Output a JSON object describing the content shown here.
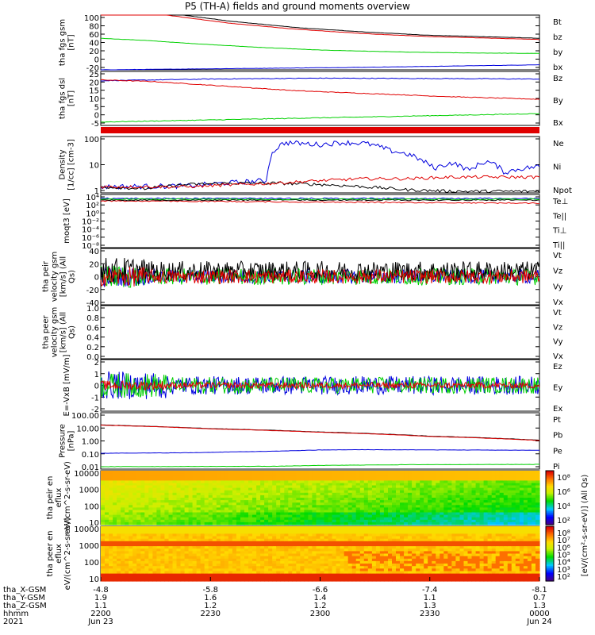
{
  "title": "P5 (TH-A) fields and ground moments overview",
  "colors": {
    "black": "#000000",
    "red": "#e00000",
    "green": "#00d000",
    "blue": "#0000dd"
  },
  "chart_data": [
    {
      "type": "line",
      "ylabel": "tha fgs gsm [nT]",
      "yticks": [
        "100",
        "80",
        "60",
        "40",
        "20",
        "0",
        "-20"
      ],
      "ylim": [
        -30,
        100
      ],
      "series": [
        {
          "name": "Bt",
          "color": "#000000",
          "x": [
            0,
            0.15,
            0.3,
            0.45,
            0.6,
            0.75,
            0.9,
            1
          ],
          "y": [
            140,
            105,
            85,
            70,
            60,
            52,
            48,
            45
          ]
        },
        {
          "name": "bz",
          "color": "#e00000",
          "x": [
            0,
            0.15,
            0.3,
            0.45,
            0.6,
            0.75,
            0.9,
            1
          ],
          "y": [
            130,
            100,
            80,
            66,
            56,
            49,
            45,
            42
          ]
        },
        {
          "name": "by",
          "color": "#00d000",
          "x": [
            0,
            0.1,
            0.2,
            0.35,
            0.5,
            0.7,
            0.85,
            1
          ],
          "y": [
            45,
            40,
            33,
            24,
            17,
            12,
            10,
            9
          ]
        },
        {
          "name": "bx",
          "color": "#0000dd",
          "x": [
            0,
            0.2,
            0.4,
            0.6,
            0.8,
            1
          ],
          "y": [
            -30,
            -28,
            -26,
            -24,
            -21,
            -18
          ]
        }
      ]
    },
    {
      "type": "line",
      "ylabel": "tha fgs dsl [nT]",
      "yticks": [
        "25",
        "20",
        "15",
        "10",
        "5",
        "0",
        "-5"
      ],
      "ylim": [
        -7,
        25
      ],
      "series": [
        {
          "name": "Bz",
          "color": "#0000dd",
          "x": [
            0,
            0.25,
            0.5,
            0.75,
            1
          ],
          "y": [
            19.5,
            20.5,
            21,
            20.8,
            20.5
          ]
        },
        {
          "name": "By",
          "color": "#e00000",
          "x": [
            0,
            0.12,
            0.3,
            0.45,
            0.6,
            0.8,
            1
          ],
          "y": [
            20,
            19,
            16,
            13.5,
            12,
            10,
            8.5
          ]
        },
        {
          "name": "Bx",
          "color": "#00d000",
          "x": [
            0,
            0.3,
            0.6,
            1
          ],
          "y": [
            -5,
            -3.5,
            -2,
            0
          ]
        }
      ]
    },
    {
      "type": "line",
      "ylabel": "Density [1/cc] [cm-3]",
      "yticks": [
        "100",
        "10",
        "1"
      ],
      "log": true,
      "series": [
        {
          "name": "Ne",
          "color": "#0000dd",
          "x": [
            0,
            0.2,
            0.38,
            0.42,
            0.5,
            0.55,
            0.6,
            0.66,
            0.7,
            0.73,
            0.76,
            0.8,
            0.84,
            0.88,
            0.92,
            0.96,
            1
          ],
          "y": [
            1,
            1.1,
            2,
            150,
            120,
            150,
            140,
            60,
            40,
            20,
            8,
            15,
            6,
            18,
            5,
            8,
            10
          ]
        },
        {
          "name": "Ni",
          "color": "#000000",
          "x": [
            0,
            0.1,
            0.2,
            0.3,
            0.4,
            0.5,
            0.6,
            0.7,
            0.8,
            1
          ],
          "y": [
            1,
            0.8,
            1.3,
            1.5,
            1.5,
            1.3,
            1,
            0.7,
            0.6,
            0.6
          ]
        },
        {
          "name": "Npot",
          "color": "#e00000",
          "x": [
            0,
            0.2,
            0.4,
            0.5,
            0.6,
            0.7,
            0.8,
            0.9,
            1
          ],
          "y": [
            1,
            1,
            1.5,
            2,
            2.5,
            2.5,
            3,
            3,
            3
          ]
        }
      ]
    },
    {
      "type": "line",
      "ylabel": "moqt3 [eV]",
      "yticks": [
        "10⁴",
        "10²",
        "10⁰",
        "10⁻²",
        "10⁻⁴",
        "10⁻⁶",
        "10⁻⁸"
      ],
      "series": [
        {
          "name": "Te⊥",
          "color": "#e00000"
        },
        {
          "name": "Te||",
          "color": "#000000"
        },
        {
          "name": "Ti⊥",
          "color": "#0000dd"
        },
        {
          "name": "Ti||",
          "color": "#00d000"
        }
      ]
    },
    {
      "type": "line",
      "ylabel": "tha peir velocity gsm [km/s] (All Qs)",
      "yticks": [
        "40",
        "20",
        "0",
        "-20",
        "-40"
      ],
      "ylim": [
        -40,
        40
      ],
      "series": [
        {
          "name": "Vt",
          "color": "#000000"
        },
        {
          "name": "Vz",
          "color": "#e00000"
        },
        {
          "name": "Vy",
          "color": "#00d000"
        },
        {
          "name": "Vx",
          "color": "#0000dd"
        }
      ]
    },
    {
      "type": "line",
      "ylabel": "tha peer velocity gsm [km/s] (All Qs)",
      "yticks": [
        "1.0",
        "0.8",
        "0.6",
        "0.4",
        "0.2",
        "0.0"
      ],
      "ylim": [
        0,
        1
      ],
      "series": [
        {
          "name": "Vt",
          "color": "#000000"
        },
        {
          "name": "Vz",
          "color": "#e00000"
        },
        {
          "name": "Vy",
          "color": "#00d000"
        },
        {
          "name": "Vx",
          "color": "#0000dd"
        }
      ]
    },
    {
      "type": "line",
      "ylabel": "E=-VxB [mV/m]",
      "yticks": [
        "2",
        "1",
        "0",
        "-1",
        "-2"
      ],
      "ylim": [
        -2.5,
        2.5
      ],
      "series": [
        {
          "name": "Ez",
          "color": "#e00000"
        },
        {
          "name": "Ey",
          "color": "#00d000"
        },
        {
          "name": "Ex",
          "color": "#0000dd"
        }
      ]
    },
    {
      "type": "line",
      "ylabel": "Pressure [nPa]",
      "yticks": [
        "100.00",
        "10.00",
        "1.00",
        "0.10",
        "0.01"
      ],
      "log": true,
      "series": [
        {
          "name": "Pt",
          "color": "#000000",
          "x": [
            0,
            0.25,
            0.5,
            0.75,
            1
          ],
          "y": [
            15,
            8,
            4.5,
            2.2,
            1.1
          ]
        },
        {
          "name": "Pb",
          "color": "#e00000",
          "x": [
            0,
            0.25,
            0.5,
            0.75,
            1
          ],
          "y": [
            14.5,
            7.7,
            4.3,
            2.1,
            1.05
          ]
        },
        {
          "name": "Pe",
          "color": "#00d000",
          "x": [
            0,
            0.4,
            0.5,
            0.7,
            1
          ],
          "y": [
            0.012,
            0.013,
            0.015,
            0.017,
            0.018
          ]
        },
        {
          "name": "Pi",
          "color": "#0000dd",
          "x": [
            0,
            0.2,
            0.4,
            0.5,
            0.6,
            0.8,
            1
          ],
          "y": [
            0.12,
            0.13,
            0.17,
            0.21,
            0.22,
            0.21,
            0.2
          ]
        }
      ]
    },
    {
      "type": "heatmap",
      "ylabel": "tha peir en eflux eV/(cm^2-s-sr-eV)",
      "yticks": [
        "10000",
        "1000",
        "100",
        "10"
      ],
      "colorbar_ticks": [
        "10⁸",
        "10⁶",
        "10⁴",
        "10²"
      ]
    },
    {
      "type": "heatmap",
      "ylabel": "tha peer en eflux eV/(cm^2-s-sr-eV)",
      "yticks": [
        "10000",
        "1000",
        "100",
        "10"
      ],
      "colorbar_ticks": [
        "10⁸",
        "10⁷",
        "10⁶",
        "10⁵",
        "10⁴",
        "10³",
        "10²"
      ]
    }
  ],
  "colorbar_label": "[eV/(cm²-s-sr-eV)] (All Qs)",
  "xaxis": {
    "row_labels": [
      "tha_X-GSM",
      "tha_Y-GSM",
      "tha_Z-GSM",
      "hhmm",
      "2021"
    ],
    "columns": [
      {
        "vals": [
          "-4.8",
          "1.9",
          "1.1",
          "2200",
          "Jun 23"
        ]
      },
      {
        "vals": [
          "-5.8",
          "1.6",
          "1.2",
          "2230",
          ""
        ]
      },
      {
        "vals": [
          "-6.6",
          "1.4",
          "1.2",
          "2300",
          ""
        ]
      },
      {
        "vals": [
          "-7.4",
          "1.1",
          "1.3",
          "2330",
          ""
        ]
      },
      {
        "vals": [
          "-8.1",
          "0.7",
          "1.3",
          "0000",
          "Jun 24"
        ]
      }
    ]
  }
}
